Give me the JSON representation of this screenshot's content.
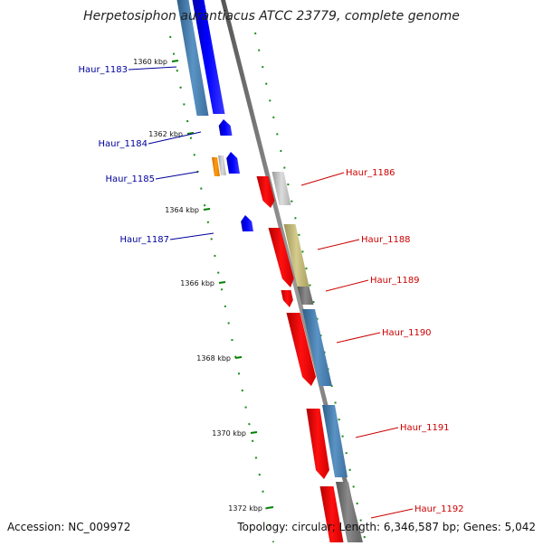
{
  "title": "Herpetosiphon aurantiacus ATCC 23779, complete genome",
  "accession": "Accession: NC_009972",
  "summary": "Topology: circular; Length: 6,346,587 bp; Genes: 5,042",
  "colors": {
    "label_left": "#00009c",
    "label_right": "#cc0000",
    "backbone": "#808080",
    "tick": "#008000"
  },
  "scale_ticks": [
    "1360 kbp",
    "1362 kbp",
    "1364 kbp",
    "1366 kbp",
    "1368 kbp",
    "1370 kbp",
    "1372 kbp"
  ],
  "gene_labels": {
    "left": [
      "Haur_1183",
      "Haur_1184",
      "Haur_1185",
      "Haur_1187"
    ],
    "right": [
      "Haur_1186",
      "Haur_1188",
      "Haur_1189",
      "Haur_1190",
      "Haur_1191",
      "Haur_1192"
    ]
  }
}
